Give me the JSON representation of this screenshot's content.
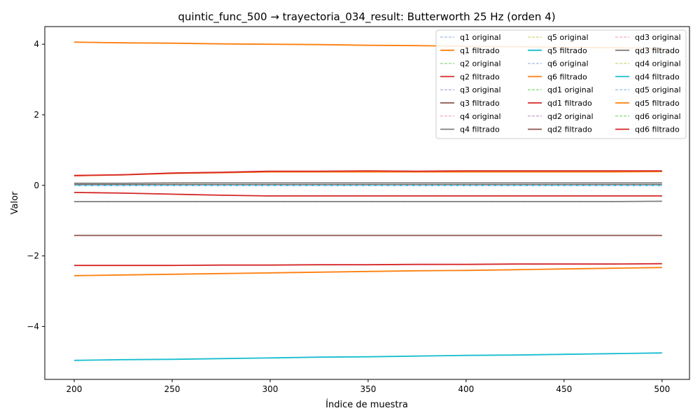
{
  "chart_data": {
    "type": "line",
    "title": "quintic_func_500 → trayectoria_034_result: Butterworth 25 Hz (orden 4)",
    "xlabel": "Índice de muestra",
    "ylabel": "Valor",
    "xlim": [
      185,
      514
    ],
    "ylim": [
      -5.5,
      4.5
    ],
    "xticks": [
      200,
      250,
      300,
      350,
      400,
      450,
      500
    ],
    "yticks": [
      -4,
      -2,
      0,
      2,
      4
    ],
    "ytick_labels": [
      "−4",
      "−2",
      "0",
      "2",
      "4"
    ],
    "grid": false,
    "legend": {
      "placement": "top-right",
      "columns": 3
    },
    "x": [
      200,
      225,
      250,
      275,
      300,
      325,
      350,
      375,
      400,
      425,
      450,
      475,
      500
    ],
    "series": [
      {
        "name": "q1 original",
        "color": "#aec7e8",
        "dashed": true,
        "values": [
          4.06,
          4.04,
          4.03,
          4.01,
          4.0,
          3.99,
          3.97,
          3.96,
          3.94,
          3.93,
          3.91,
          3.9,
          3.88
        ]
      },
      {
        "name": "q1 filtrado",
        "color": "#ff7f0e",
        "dashed": false,
        "values": [
          4.06,
          4.04,
          4.03,
          4.01,
          4.0,
          3.99,
          3.97,
          3.96,
          3.94,
          3.93,
          3.91,
          3.9,
          3.88
        ]
      },
      {
        "name": "q2 original",
        "color": "#98df8a",
        "dashed": true,
        "values": [
          -0.2,
          -0.22,
          -0.25,
          -0.28,
          -0.3,
          -0.3,
          -0.3,
          -0.3,
          -0.3,
          -0.3,
          -0.3,
          -0.3,
          -0.3
        ]
      },
      {
        "name": "q2 filtrado",
        "color": "#d62728",
        "dashed": false,
        "values": [
          -0.2,
          -0.22,
          -0.25,
          -0.28,
          -0.3,
          -0.3,
          -0.3,
          -0.3,
          -0.3,
          -0.3,
          -0.3,
          -0.3,
          -0.3
        ]
      },
      {
        "name": "q3 original",
        "color": "#c5b0d5",
        "dashed": true,
        "values": [
          -1.42,
          -1.42,
          -1.42,
          -1.42,
          -1.42,
          -1.42,
          -1.42,
          -1.42,
          -1.42,
          -1.42,
          -1.42,
          -1.42,
          -1.42
        ]
      },
      {
        "name": "q3 filtrado",
        "color": "#8c564b",
        "dashed": false,
        "values": [
          -1.42,
          -1.42,
          -1.42,
          -1.42,
          -1.42,
          -1.42,
          -1.42,
          -1.42,
          -1.42,
          -1.42,
          -1.42,
          -1.42,
          -1.42
        ]
      },
      {
        "name": "q4 original",
        "color": "#f7b6d2",
        "dashed": true,
        "values": [
          -0.46,
          -0.46,
          -0.46,
          -0.46,
          -0.46,
          -0.46,
          -0.46,
          -0.46,
          -0.46,
          -0.46,
          -0.46,
          -0.46,
          -0.45
        ]
      },
      {
        "name": "q4 filtrado",
        "color": "#7f7f7f",
        "dashed": false,
        "values": [
          -0.46,
          -0.46,
          -0.46,
          -0.46,
          -0.46,
          -0.46,
          -0.46,
          -0.46,
          -0.46,
          -0.46,
          -0.46,
          -0.46,
          -0.45
        ]
      },
      {
        "name": "q5 original",
        "color": "#dbdb8d",
        "dashed": true,
        "values": [
          0.05,
          0.06,
          0.06,
          0.07,
          0.07,
          0.07,
          0.07,
          0.07,
          0.07,
          0.07,
          0.07,
          0.07,
          0.07
        ]
      },
      {
        "name": "q5 filtrado",
        "color": "#17becf",
        "dashed": false,
        "values": [
          -4.96,
          -4.94,
          -4.93,
          -4.91,
          -4.89,
          -4.87,
          -4.86,
          -4.84,
          -4.82,
          -4.81,
          -4.79,
          -4.77,
          -4.75
        ]
      },
      {
        "name": "q6 original",
        "color": "#aec7e8",
        "dashed": true,
        "values": [
          0.27,
          0.3,
          0.34,
          0.36,
          0.38,
          0.38,
          0.38,
          0.38,
          0.38,
          0.38,
          0.38,
          0.38,
          0.39
        ]
      },
      {
        "name": "q6 filtrado",
        "color": "#ff7f0e",
        "dashed": false,
        "values": [
          -2.56,
          -2.54,
          -2.52,
          -2.5,
          -2.48,
          -2.46,
          -2.44,
          -2.42,
          -2.41,
          -2.39,
          -2.37,
          -2.35,
          -2.33
        ]
      },
      {
        "name": "qd1 original",
        "color": "#98df8a",
        "dashed": true,
        "values": [
          0.0,
          0.0,
          0.0,
          0.0,
          0.0,
          0.0,
          0.0,
          0.0,
          0.0,
          0.0,
          0.0,
          0.0,
          0.0
        ]
      },
      {
        "name": "qd1 filtrado",
        "color": "#d62728",
        "dashed": false,
        "values": [
          -2.27,
          -2.27,
          -2.27,
          -2.26,
          -2.26,
          -2.25,
          -2.25,
          -2.24,
          -2.24,
          -2.23,
          -2.23,
          -2.23,
          -2.22
        ]
      },
      {
        "name": "qd2 original",
        "color": "#c5b0d5",
        "dashed": true,
        "values": [
          0.02,
          0.02,
          0.02,
          0.02,
          0.02,
          0.02,
          0.02,
          0.02,
          0.02,
          0.02,
          0.02,
          0.02,
          0.02
        ]
      },
      {
        "name": "qd2 filtrado",
        "color": "#8c564b",
        "dashed": false,
        "values": [
          0.02,
          0.02,
          0.02,
          0.02,
          0.02,
          0.02,
          0.02,
          0.02,
          0.02,
          0.02,
          0.02,
          0.02,
          0.02
        ]
      },
      {
        "name": "qd3 original",
        "color": "#f7b6d2",
        "dashed": true,
        "values": [
          0.0,
          0.0,
          0.0,
          0.0,
          0.0,
          0.0,
          0.0,
          0.0,
          0.0,
          0.0,
          0.0,
          0.0,
          0.0
        ]
      },
      {
        "name": "qd3 filtrado",
        "color": "#7f7f7f",
        "dashed": false,
        "values": [
          0.06,
          0.06,
          0.07,
          0.07,
          0.07,
          0.07,
          0.07,
          0.07,
          0.07,
          0.07,
          0.07,
          0.07,
          0.07
        ]
      },
      {
        "name": "qd4 original",
        "color": "#dbdb8d",
        "dashed": true,
        "values": [
          0.0,
          0.0,
          0.0,
          0.0,
          0.0,
          0.0,
          0.0,
          0.0,
          0.0,
          0.0,
          0.0,
          0.0,
          0.0
        ]
      },
      {
        "name": "qd4 filtrado",
        "color": "#17becf",
        "dashed": false,
        "values": [
          0.0,
          0.0,
          0.0,
          0.0,
          0.0,
          0.0,
          0.0,
          0.0,
          0.0,
          0.0,
          0.0,
          0.0,
          0.0
        ]
      },
      {
        "name": "qd5 original",
        "color": "#aec7e8",
        "dashed": true,
        "values": [
          0.0,
          0.0,
          0.0,
          0.0,
          0.0,
          0.0,
          0.0,
          0.0,
          0.0,
          0.0,
          0.0,
          0.0,
          0.0
        ]
      },
      {
        "name": "qd5 filtrado",
        "color": "#ff7f0e",
        "dashed": false,
        "values": [
          0.27,
          0.3,
          0.34,
          0.36,
          0.38,
          0.38,
          0.38,
          0.38,
          0.38,
          0.38,
          0.38,
          0.38,
          0.39
        ]
      },
      {
        "name": "qd6 original",
        "color": "#98df8a",
        "dashed": true,
        "values": [
          0.28,
          0.3,
          0.35,
          0.37,
          0.4,
          0.4,
          0.41,
          0.4,
          0.41,
          0.41,
          0.41,
          0.41,
          0.41
        ]
      },
      {
        "name": "qd6 filtrado",
        "color": "#d62728",
        "dashed": false,
        "values": [
          0.28,
          0.3,
          0.35,
          0.37,
          0.4,
          0.4,
          0.41,
          0.4,
          0.41,
          0.41,
          0.41,
          0.41,
          0.41
        ]
      }
    ]
  }
}
